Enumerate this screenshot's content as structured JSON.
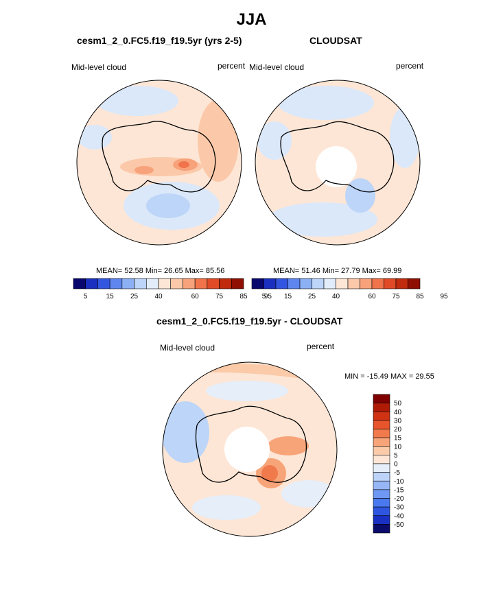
{
  "page_title": "JJA",
  "colors": {
    "abs_palette": [
      "#08076e",
      "#1a2fbf",
      "#3356e0",
      "#5f86ef",
      "#8cb0f4",
      "#bcd5f8",
      "#e2ecfa",
      "#fde6d6",
      "#fbc9a9",
      "#f7a27a",
      "#f0734b",
      "#e04a26",
      "#c02a0d",
      "#8f0f03"
    ],
    "diff_palette": [
      "#0a0b6b",
      "#1930c2",
      "#2f55e0",
      "#4a78ef",
      "#6f98f4",
      "#96b6f6",
      "#bdd3f8",
      "#e5eef9",
      "#fde6d6",
      "#fbcaa9",
      "#f8a479",
      "#f07a4c",
      "#e8542c",
      "#cf3314",
      "#b01b06",
      "#800000"
    ],
    "coast": "#000000",
    "missing": "#ffffff"
  },
  "panels": {
    "model": {
      "title": "cesm1_2_0.FC5.f19_f19.5yr (yrs 2-5)",
      "left_label": "Mid-level cloud",
      "right_label": "percent",
      "stats": "MEAN=  52.58  Min=  26.65  Max=  85.56"
    },
    "obs": {
      "title": "CLOUDSAT",
      "left_label": "Mid-level cloud",
      "right_label": "percent",
      "stats": "MEAN=  51.46  Min=  27.79  Max=  69.99"
    },
    "diff": {
      "title": "cesm1_2_0.FC5.f19_f19.5yr - CLOUDSAT",
      "left_label": "Mid-level cloud",
      "right_label": "percent",
      "stats": "MIN = -15.49 MAX =  29.55"
    }
  },
  "colorbars": {
    "abs_ticks": [
      "5",
      "15",
      "25",
      "40",
      "60",
      "75",
      "85",
      "95"
    ],
    "diff_ticks": [
      "50",
      "40",
      "30",
      "20",
      "15",
      "10",
      "5",
      "0",
      "-5",
      "-10",
      "-15",
      "-20",
      "-30",
      "-40",
      "-50"
    ]
  },
  "chart_data": [
    {
      "type": "heatmap",
      "title": "cesm1_2_0.FC5.f19_f19.5yr (yrs 2-5)",
      "variable": "Mid-level cloud",
      "units": "percent",
      "projection": "south polar stereographic",
      "mean": 52.58,
      "min": 26.65,
      "max": 85.56,
      "levels": [
        5,
        10,
        15,
        20,
        25,
        30,
        40,
        50,
        60,
        70,
        75,
        80,
        85,
        90,
        95
      ]
    },
    {
      "type": "heatmap",
      "title": "CLOUDSAT",
      "variable": "Mid-level cloud",
      "units": "percent",
      "projection": "south polar stereographic",
      "mean": 51.46,
      "min": 27.79,
      "max": 69.99,
      "levels": [
        5,
        10,
        15,
        20,
        25,
        30,
        40,
        50,
        60,
        70,
        75,
        80,
        85,
        90,
        95
      ]
    },
    {
      "type": "heatmap",
      "title": "cesm1_2_0.FC5.f19_f19.5yr - CLOUDSAT",
      "variable": "Mid-level cloud",
      "units": "percent",
      "projection": "south polar stereographic",
      "min": -15.49,
      "max": 29.55,
      "levels": [
        -50,
        -40,
        -30,
        -20,
        -15,
        -10,
        -5,
        0,
        5,
        10,
        15,
        20,
        30,
        40,
        50
      ]
    }
  ]
}
